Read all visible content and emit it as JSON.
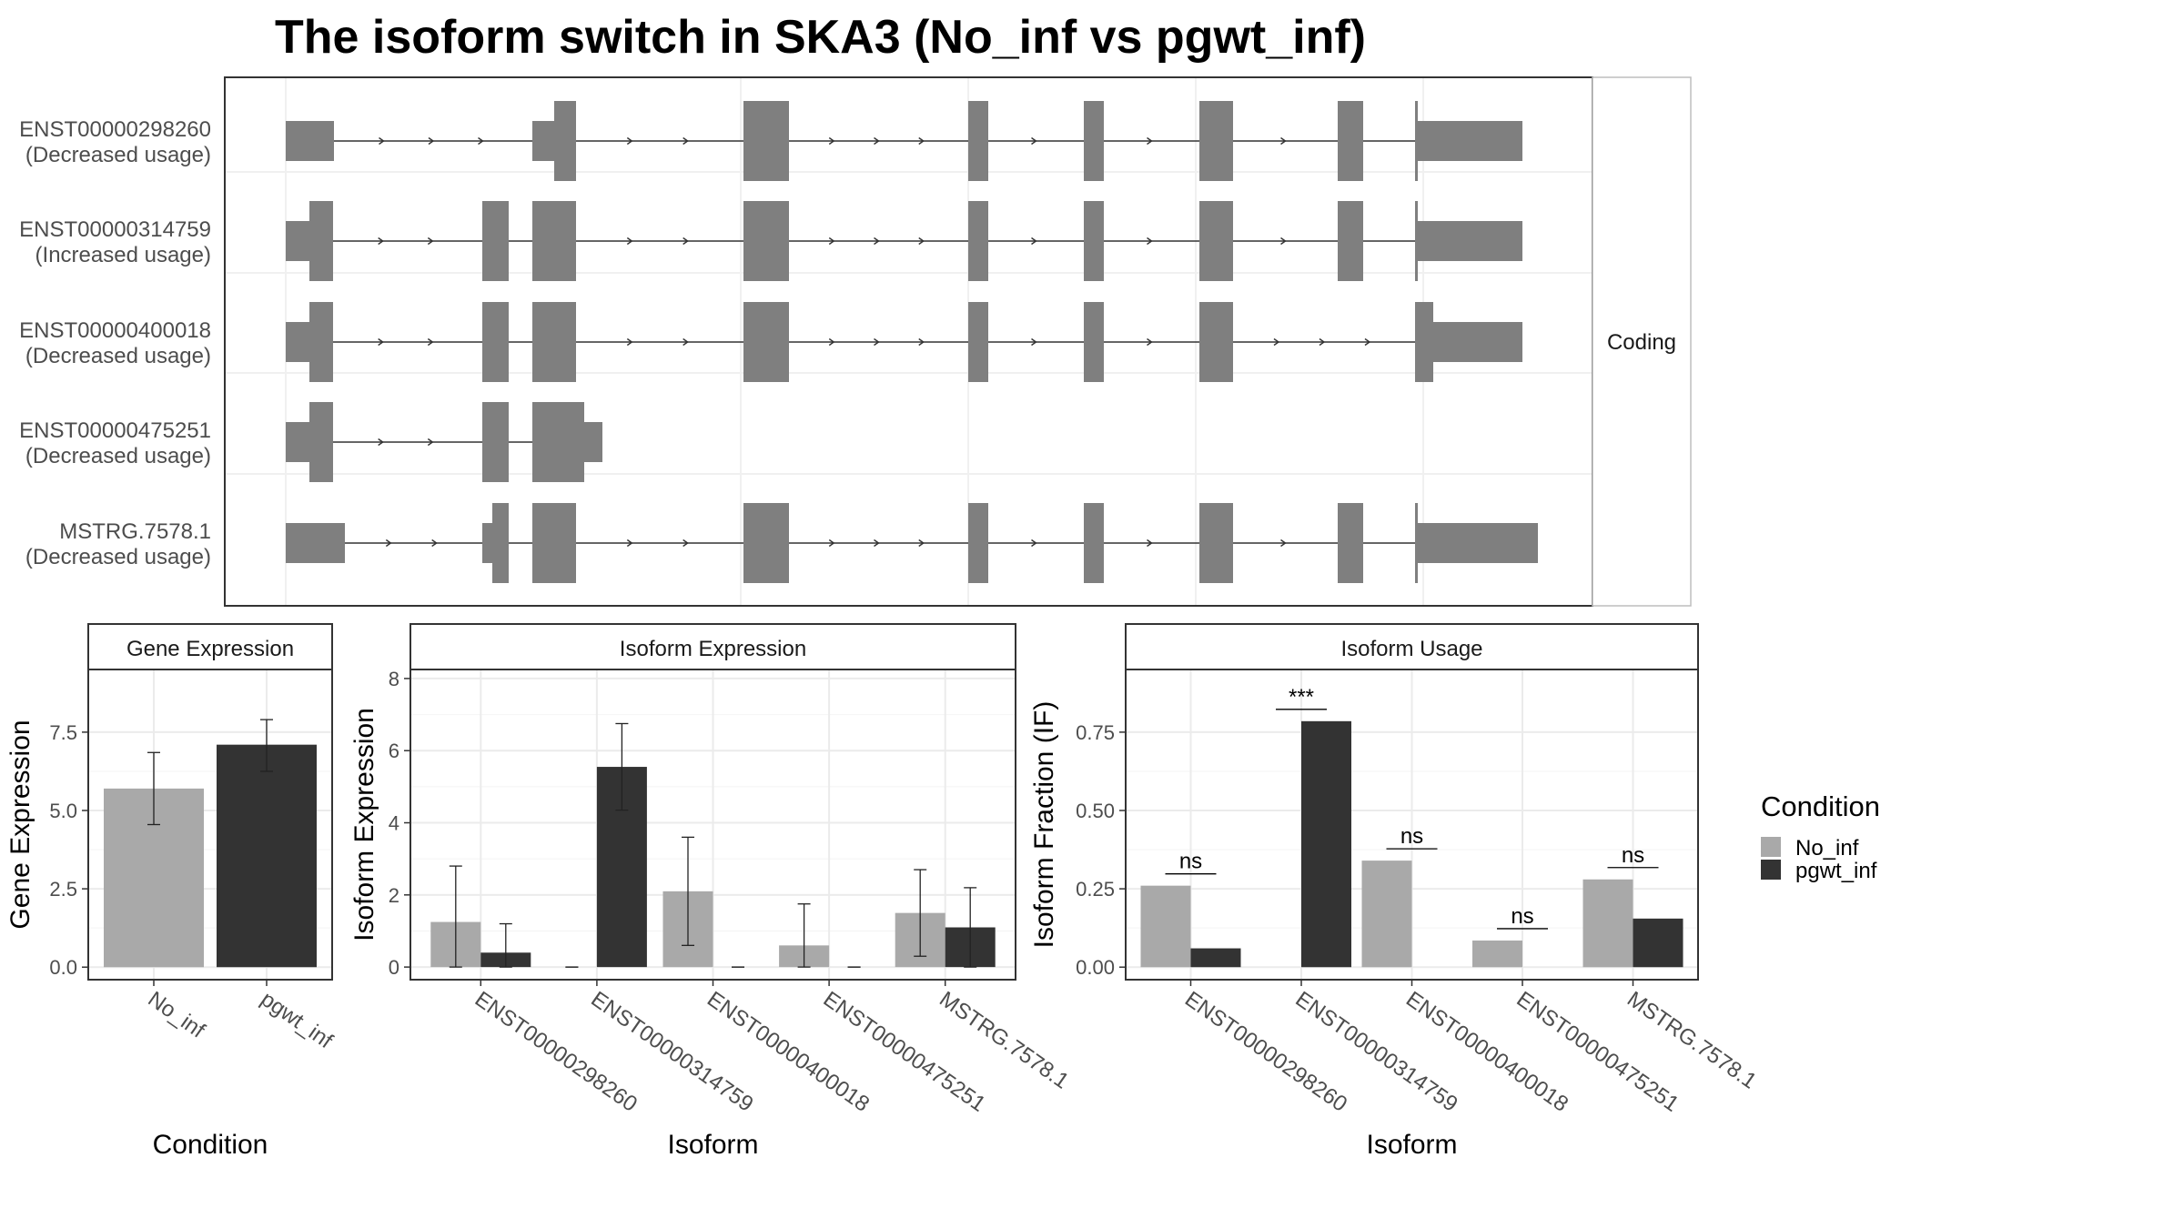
{
  "title": "The isoform switch in SKA3 (No_inf vs pgwt_inf)",
  "colors": {
    "No_inf": "#a9a9a9",
    "pgwt_inf": "#333333",
    "exon": "#7f7f7f",
    "intron": "#333333",
    "panel_border": "#333333",
    "grid": "#ebebeb",
    "strip_fill": "#ffffff",
    "text": "#4d4d4d"
  },
  "transcript_panel": {
    "strip_label": "Coding",
    "transcripts": [
      {
        "id": "ENST00000298260",
        "usage": "(Decreased usage)"
      },
      {
        "id": "ENST00000314759",
        "usage": "(Increased usage)"
      },
      {
        "id": "ENST00000400018",
        "usage": "(Decreased usage)"
      },
      {
        "id": "ENST00000475251",
        "usage": "(Decreased usage)"
      },
      {
        "id": "MSTRG.7578.1",
        "usage": "(Decreased usage)"
      }
    ]
  },
  "legend": {
    "title": "Condition",
    "entries": [
      "No_inf",
      "pgwt_inf"
    ]
  },
  "chart_data": [
    {
      "type": "bar",
      "strip_title": "Gene Expression",
      "xlabel": "Condition",
      "ylabel": "Gene Expression",
      "categories": [
        "No_inf",
        "pgwt_inf"
      ],
      "values": [
        5.7,
        7.1
      ],
      "error_low": [
        4.55,
        6.25
      ],
      "error_high": [
        6.85,
        7.9
      ],
      "ylim": [
        -0.4,
        9.5
      ],
      "yticks": [
        "0.0",
        "2.5",
        "5.0",
        "7.5"
      ],
      "ytick_values": [
        0,
        2.5,
        5,
        7.5
      ],
      "grid": true
    },
    {
      "type": "bar",
      "strip_title": "Isoform Expression",
      "xlabel": "Isoform",
      "ylabel": "Isoform Expression",
      "categories": [
        "ENST00000298260",
        "ENST00000314759",
        "ENST00000400018",
        "ENST00000475251",
        "MSTRG.7578.1"
      ],
      "series": [
        {
          "name": "No_inf",
          "values": [
            1.25,
            0.0,
            2.1,
            0.6,
            1.5
          ],
          "error_low": [
            0.0,
            0.0,
            0.6,
            0.0,
            0.3
          ],
          "error_high": [
            2.8,
            0.0,
            3.6,
            1.75,
            2.7
          ]
        },
        {
          "name": "pgwt_inf",
          "values": [
            0.4,
            5.55,
            0.0,
            0.0,
            1.1
          ],
          "error_low": [
            0.0,
            4.35,
            0.0,
            0.0,
            0.0
          ],
          "error_high": [
            1.2,
            6.75,
            0.0,
            0.0,
            2.2
          ]
        }
      ],
      "ylim": [
        -0.35,
        8.25
      ],
      "yticks": [
        "0",
        "2",
        "4",
        "6",
        "8"
      ],
      "ytick_values": [
        0,
        2,
        4,
        6,
        8
      ],
      "grid": true
    },
    {
      "type": "bar",
      "strip_title": "Isoform Usage",
      "xlabel": "Isoform",
      "ylabel": "Isoform Fraction (IF)",
      "categories": [
        "ENST00000298260",
        "ENST00000314759",
        "ENST00000400018",
        "ENST00000475251",
        "MSTRG.7578.1"
      ],
      "series": [
        {
          "name": "No_inf",
          "values": [
            0.26,
            0.0,
            0.34,
            0.085,
            0.28
          ]
        },
        {
          "name": "pgwt_inf",
          "values": [
            0.06,
            0.785,
            0.0,
            0.0,
            0.155
          ]
        }
      ],
      "significance": [
        "ns",
        "***",
        "ns",
        "ns",
        "ns"
      ],
      "ylim": [
        -0.04,
        0.95
      ],
      "yticks": [
        "0.00",
        "0.25",
        "0.50",
        "0.75"
      ],
      "ytick_values": [
        0,
        0.25,
        0.5,
        0.75
      ],
      "grid": true
    }
  ]
}
